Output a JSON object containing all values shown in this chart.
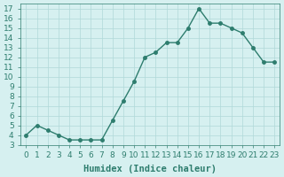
{
  "x": [
    0,
    1,
    2,
    3,
    4,
    5,
    6,
    7,
    8,
    9,
    10,
    11,
    12,
    13,
    14,
    15,
    16,
    17,
    18,
    19,
    20,
    21,
    22,
    23
  ],
  "y": [
    4,
    5,
    4.5,
    4,
    3.5,
    3.5,
    3.5,
    3.5,
    5.5,
    7.5,
    9.5,
    12,
    12.5,
    13.5,
    13.5,
    15,
    17,
    15.5,
    15.5,
    15,
    14.5,
    13,
    11.5,
    11.5
  ],
  "line_color": "#2e7d6e",
  "marker_color": "#2e7d6e",
  "bg_color": "#d6f0f0",
  "grid_color": "#b0d8d8",
  "xlabel": "Humidex (Indice chaleur)",
  "ylim": [
    3,
    17.5
  ],
  "xlim": [
    -0.5,
    23.5
  ],
  "yticks": [
    3,
    4,
    5,
    6,
    7,
    8,
    9,
    10,
    11,
    12,
    13,
    14,
    15,
    16,
    17
  ],
  "xticks": [
    0,
    1,
    2,
    3,
    4,
    5,
    6,
    7,
    8,
    9,
    10,
    11,
    12,
    13,
    14,
    15,
    16,
    17,
    18,
    19,
    20,
    21,
    22,
    23
  ],
  "tick_color": "#2e7d6e",
  "spine_color": "#2e7d6e",
  "xlabel_fontsize": 7.5,
  "tick_fontsize": 6.5
}
